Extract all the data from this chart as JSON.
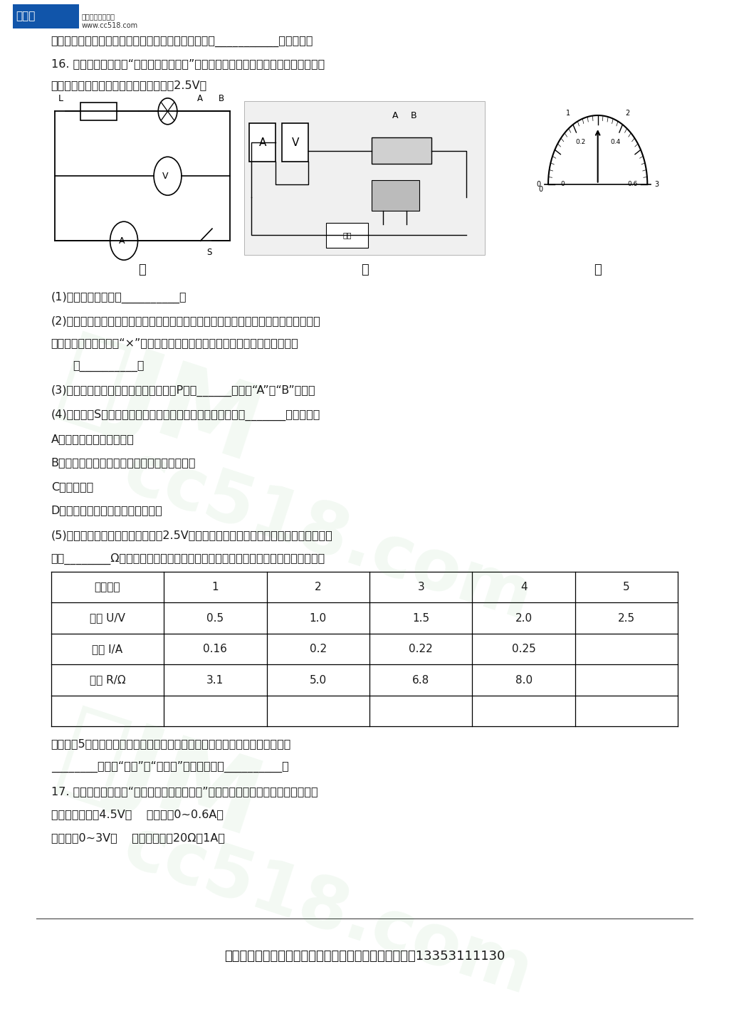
{
  "bg_color": "#ffffff",
  "footer_text": "更多小学、初中、高中全学年全科学习资料，详询微信：13353111130",
  "table_headers": [
    "实验序号",
    "1",
    "2",
    "3",
    "4",
    "5"
  ],
  "table_rows": [
    [
      "电压 U/V",
      "0.5",
      "1.0",
      "1.5",
      "2.0",
      "2.5"
    ],
    [
      "电流 I/A",
      "0.16",
      "0.2",
      "0.22",
      "0.25",
      ""
    ],
    [
      "电阵 R/Ω",
      "3.1",
      "5.0",
      "6.8",
      "8.0",
      ""
    ]
  ],
  "line1": "通过实验数据可以初步得出导体的电阵与导体的长度成___________比的结论。",
  "line2": "16. 小明和小华在进行“测量小灯泡的阻值”实验时，他们设计了如图甲所示的电路图，",
  "line3": "其中电源电压恒定，小灯泡的额定电压为2.5V。",
  "q1": "(1)该实验的原理是：__________；",
  "q2a": "(2)如图乙的实物连线中存在连线错误，只需要改接一根导线就可以更正实物连接，请你",
  "q2b": "把接错的那根导线打上“×”，再画线把它改到正确位置上（导线不允许交叉）。",
  "q2c": "（__________）",
  "q3": "(3)闭合开关前，应将滑动变阵器的滑片P置于______（选填“A”、“B”）端。",
  "q4": "(4)闭合开关S后，发现小灯泡不亮，接下来首先应该操作的是_______（填序号）",
  "qa": "A．检查导线连接是否良好",
  "qb": "B．移动滑动变阵器的滑片观察小灯泡是否发光",
  "qc": "C．断开开关",
  "qd": "D．观察电流表和电压表是否有示数",
  "q5a": "(5)某次实验中，当电压表的示数为2.5V时，电流表的示数如图丙所示，此时小灯泡的电",
  "q5b": "阵为________Ω（保留一位小数）；在实验过程中，多次实验测得的数据如下表所示",
  "bt1": "小明将这5组数据算出电阵的平均值作为小灯泡的电阵，这种处理数据的方式是",
  "bt2": "________（选填“合理”或“不合理”）的，理由是__________。",
  "q17a": "17. 如图甲所示是小明“探究电流与电阵的关系”的实验电路图，选用的实验器材是：",
  "q17b": "学生电源（恒为4.5V）    电流表（0~0.6A）",
  "q17c": "电压表（0~3V）    滑动变阵器（20Ω，1A）"
}
